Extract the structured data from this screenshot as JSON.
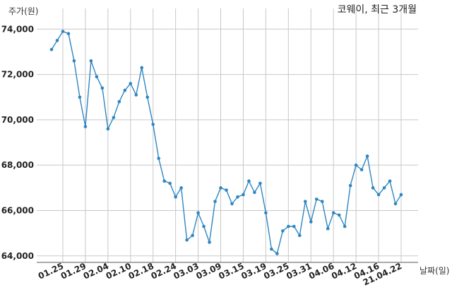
{
  "chart_data": {
    "type": "line",
    "title": "코웨이, 최근 3개월",
    "xlabel": "날짜(일)",
    "ylabel": "주가(원)",
    "ylim": [
      63900,
      74600
    ],
    "yticks": [
      64000,
      66000,
      68000,
      70000,
      72000,
      74000
    ],
    "ytick_labels": [
      "64,000",
      "66,000",
      "68,000",
      "70,000",
      "72,000",
      "74,000"
    ],
    "xticks": [
      "01.25",
      "01.29",
      "02.04",
      "02.10",
      "02.18",
      "02.24",
      "03.03",
      "03.09",
      "03.15",
      "03.19",
      "03.25",
      "03.31",
      "04.06",
      "04.12",
      "04.16",
      "21.04.22"
    ],
    "xtick_index": [
      2,
      6,
      10,
      14,
      18,
      22,
      26,
      30,
      34,
      38,
      42,
      46,
      50,
      54,
      58,
      62
    ],
    "grid": true,
    "color": "#2e86c1",
    "series": [
      {
        "values": [
          73100,
          73500,
          73900,
          73800,
          72600,
          71000,
          69700,
          72600,
          71900,
          71400,
          69600,
          70100,
          70800,
          71300,
          71600,
          71100,
          72300,
          71000,
          69800,
          68300,
          67300,
          67200,
          66600,
          67000,
          64700,
          64900,
          65900,
          65300,
          64600,
          66400,
          67000,
          66900,
          66300,
          66600,
          66700,
          67300,
          66800,
          67200,
          65900,
          64300,
          64100,
          65100,
          65300,
          65300,
          64900,
          66400,
          65500,
          66500,
          66400,
          65200,
          65900,
          65800,
          65300,
          67100,
          68000,
          67800,
          68400,
          67000,
          66700,
          67000,
          67300,
          66300,
          66700
        ]
      }
    ]
  }
}
